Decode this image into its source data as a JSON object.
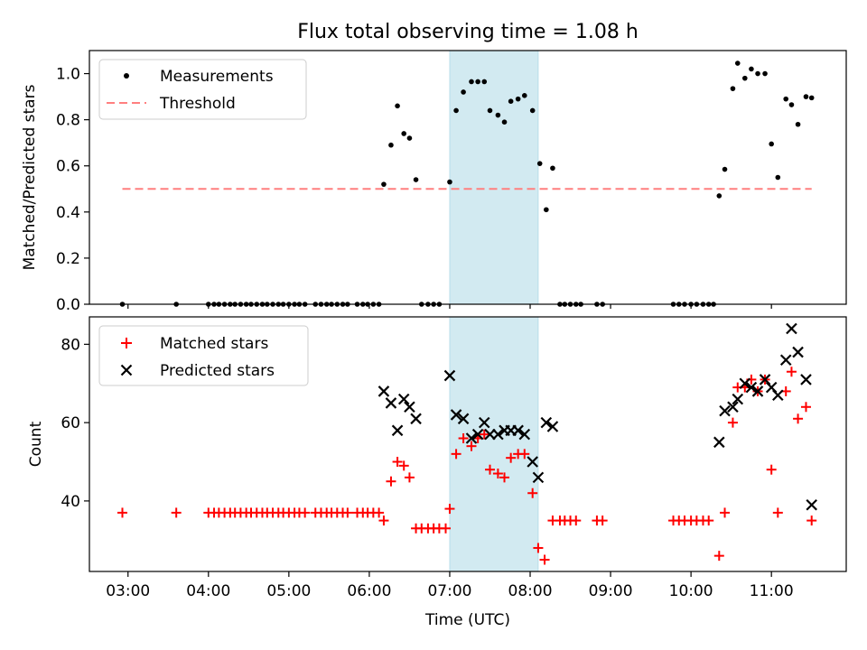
{
  "figure": {
    "title": "Flux total observing time = 1.08 h"
  },
  "chart_data": [
    {
      "type": "scatter",
      "ylabel": "Matched/Predicted stars",
      "ylim": [
        0,
        1.1
      ],
      "yticks": [
        "0.0",
        "0.2",
        "0.4",
        "0.6",
        "0.8",
        "1.0"
      ],
      "xlim_hours": [
        2.52,
        11.93
      ],
      "shaded_region_hours": [
        7.0,
        8.1
      ],
      "shade_color": "#add8e6",
      "legend": {
        "position": "upper-left",
        "items": [
          {
            "label": "Measurements",
            "color": "#000000",
            "marker": "dot"
          },
          {
            "label": "Threshold",
            "color": "#ff7f7f",
            "marker": "dashed-line"
          }
        ]
      },
      "threshold": {
        "value": 0.5,
        "x_range_hours": [
          2.93,
          11.5
        ],
        "color": "#ff7f7f"
      },
      "series": [
        {
          "name": "Measurements",
          "color": "#000000",
          "points": [
            [
              2.93,
              0
            ],
            [
              3.6,
              0
            ],
            [
              4.0,
              0
            ],
            [
              4.07,
              0
            ],
            [
              4.13,
              0
            ],
            [
              4.2,
              0
            ],
            [
              4.27,
              0
            ],
            [
              4.33,
              0
            ],
            [
              4.4,
              0
            ],
            [
              4.47,
              0
            ],
            [
              4.53,
              0
            ],
            [
              4.6,
              0
            ],
            [
              4.67,
              0
            ],
            [
              4.73,
              0
            ],
            [
              4.8,
              0
            ],
            [
              4.87,
              0
            ],
            [
              4.93,
              0
            ],
            [
              5.0,
              0
            ],
            [
              5.07,
              0
            ],
            [
              5.13,
              0
            ],
            [
              5.2,
              0
            ],
            [
              5.33,
              0
            ],
            [
              5.4,
              0
            ],
            [
              5.47,
              0
            ],
            [
              5.53,
              0
            ],
            [
              5.6,
              0
            ],
            [
              5.67,
              0
            ],
            [
              5.73,
              0
            ],
            [
              5.85,
              0
            ],
            [
              5.92,
              0
            ],
            [
              5.98,
              0
            ],
            [
              6.05,
              0
            ],
            [
              6.12,
              0
            ],
            [
              6.18,
              0.52
            ],
            [
              6.27,
              0.69
            ],
            [
              6.35,
              0.86
            ],
            [
              6.43,
              0.74
            ],
            [
              6.5,
              0.72
            ],
            [
              6.58,
              0.54
            ],
            [
              6.65,
              0
            ],
            [
              6.73,
              0
            ],
            [
              6.8,
              0
            ],
            [
              6.87,
              0
            ],
            [
              7.0,
              0.53
            ],
            [
              7.08,
              0.84
            ],
            [
              7.17,
              0.92
            ],
            [
              7.27,
              0.965
            ],
            [
              7.35,
              0.965
            ],
            [
              7.43,
              0.965
            ],
            [
              7.5,
              0.84
            ],
            [
              7.6,
              0.82
            ],
            [
              7.68,
              0.79
            ],
            [
              7.76,
              0.88
            ],
            [
              7.85,
              0.89
            ],
            [
              7.93,
              0.905
            ],
            [
              8.03,
              0.84
            ],
            [
              8.12,
              0.61
            ],
            [
              8.2,
              0.41
            ],
            [
              8.28,
              0.59
            ],
            [
              8.37,
              0
            ],
            [
              8.43,
              0
            ],
            [
              8.5,
              0
            ],
            [
              8.57,
              0
            ],
            [
              8.63,
              0
            ],
            [
              8.83,
              0
            ],
            [
              8.9,
              0
            ],
            [
              9.78,
              0
            ],
            [
              9.85,
              0
            ],
            [
              9.92,
              0
            ],
            [
              10.0,
              0
            ],
            [
              10.07,
              0
            ],
            [
              10.15,
              0
            ],
            [
              10.22,
              0
            ],
            [
              10.28,
              0
            ],
            [
              10.35,
              0.47
            ],
            [
              10.42,
              0.585
            ],
            [
              10.52,
              0.935
            ],
            [
              10.58,
              1.045
            ],
            [
              10.67,
              0.98
            ],
            [
              10.75,
              1.02
            ],
            [
              10.83,
              1.0
            ],
            [
              10.92,
              1.0
            ],
            [
              11.0,
              0.695
            ],
            [
              11.08,
              0.55
            ],
            [
              11.18,
              0.89
            ],
            [
              11.25,
              0.865
            ],
            [
              11.33,
              0.78
            ],
            [
              11.43,
              0.9
            ],
            [
              11.5,
              0.895
            ]
          ]
        }
      ]
    },
    {
      "type": "scatter",
      "xlabel": "Time (UTC)",
      "ylabel": "Count",
      "ylim": [
        22,
        87
      ],
      "yticks": [
        "40",
        "60",
        "80"
      ],
      "xticks": [
        "03:00",
        "04:00",
        "05:00",
        "06:00",
        "07:00",
        "08:00",
        "09:00",
        "10:00",
        "11:00"
      ],
      "xlim_hours": [
        2.52,
        11.93
      ],
      "shaded_region_hours": [
        7.0,
        8.1
      ],
      "legend": {
        "position": "upper-left",
        "items": [
          {
            "label": "Matched stars",
            "color": "#ff0000",
            "marker": "plus"
          },
          {
            "label": "Predicted stars",
            "color": "#000000",
            "marker": "x"
          }
        ]
      },
      "series": [
        {
          "name": "Matched stars",
          "color": "#ff0000",
          "marker": "plus",
          "points": [
            [
              2.93,
              37
            ],
            [
              3.6,
              37
            ],
            [
              4.0,
              37
            ],
            [
              4.07,
              37
            ],
            [
              4.13,
              37
            ],
            [
              4.2,
              37
            ],
            [
              4.27,
              37
            ],
            [
              4.33,
              37
            ],
            [
              4.4,
              37
            ],
            [
              4.47,
              37
            ],
            [
              4.53,
              37
            ],
            [
              4.6,
              37
            ],
            [
              4.67,
              37
            ],
            [
              4.73,
              37
            ],
            [
              4.8,
              37
            ],
            [
              4.87,
              37
            ],
            [
              4.93,
              37
            ],
            [
              5.0,
              37
            ],
            [
              5.07,
              37
            ],
            [
              5.13,
              37
            ],
            [
              5.2,
              37
            ],
            [
              5.33,
              37
            ],
            [
              5.4,
              37
            ],
            [
              5.47,
              37
            ],
            [
              5.53,
              37
            ],
            [
              5.6,
              37
            ],
            [
              5.67,
              37
            ],
            [
              5.73,
              37
            ],
            [
              5.85,
              37
            ],
            [
              5.92,
              37
            ],
            [
              5.98,
              37
            ],
            [
              6.05,
              37
            ],
            [
              6.12,
              37
            ],
            [
              6.18,
              35
            ],
            [
              6.27,
              45
            ],
            [
              6.35,
              50
            ],
            [
              6.43,
              49
            ],
            [
              6.5,
              46
            ],
            [
              6.58,
              33
            ],
            [
              6.65,
              33
            ],
            [
              6.73,
              33
            ],
            [
              6.8,
              33
            ],
            [
              6.87,
              33
            ],
            [
              6.95,
              33
            ],
            [
              7.0,
              38
            ],
            [
              7.08,
              52
            ],
            [
              7.17,
              56
            ],
            [
              7.27,
              54
            ],
            [
              7.35,
              56
            ],
            [
              7.43,
              57
            ],
            [
              7.5,
              48
            ],
            [
              7.6,
              47
            ],
            [
              7.68,
              46
            ],
            [
              7.76,
              51
            ],
            [
              7.85,
              52
            ],
            [
              7.93,
              52
            ],
            [
              8.03,
              42
            ],
            [
              8.1,
              28
            ],
            [
              8.18,
              25
            ],
            [
              8.28,
              35
            ],
            [
              8.37,
              35
            ],
            [
              8.43,
              35
            ],
            [
              8.5,
              35
            ],
            [
              8.57,
              35
            ],
            [
              8.83,
              35
            ],
            [
              8.9,
              35
            ],
            [
              9.78,
              35
            ],
            [
              9.85,
              35
            ],
            [
              9.92,
              35
            ],
            [
              10.0,
              35
            ],
            [
              10.07,
              35
            ],
            [
              10.15,
              35
            ],
            [
              10.22,
              35
            ],
            [
              10.35,
              26
            ],
            [
              10.42,
              37
            ],
            [
              10.52,
              60
            ],
            [
              10.58,
              69
            ],
            [
              10.67,
              69
            ],
            [
              10.75,
              71
            ],
            [
              10.83,
              68
            ],
            [
              10.92,
              71
            ],
            [
              11.0,
              48
            ],
            [
              11.08,
              37
            ],
            [
              11.18,
              68
            ],
            [
              11.25,
              73
            ],
            [
              11.33,
              61
            ],
            [
              11.43,
              64
            ],
            [
              11.5,
              35
            ]
          ]
        },
        {
          "name": "Predicted stars",
          "color": "#000000",
          "marker": "x",
          "points": [
            [
              6.18,
              68
            ],
            [
              6.27,
              65
            ],
            [
              6.35,
              58
            ],
            [
              6.43,
              66
            ],
            [
              6.5,
              64
            ],
            [
              6.58,
              61
            ],
            [
              7.0,
              72
            ],
            [
              7.08,
              62
            ],
            [
              7.17,
              61
            ],
            [
              7.27,
              56
            ],
            [
              7.35,
              57
            ],
            [
              7.43,
              60
            ],
            [
              7.5,
              57
            ],
            [
              7.6,
              57
            ],
            [
              7.68,
              58
            ],
            [
              7.76,
              58
            ],
            [
              7.85,
              58
            ],
            [
              7.93,
              57
            ],
            [
              8.03,
              50
            ],
            [
              8.1,
              46
            ],
            [
              8.2,
              60
            ],
            [
              8.28,
              59
            ],
            [
              10.35,
              55
            ],
            [
              10.42,
              63
            ],
            [
              10.52,
              64
            ],
            [
              10.58,
              66
            ],
            [
              10.67,
              70
            ],
            [
              10.75,
              69
            ],
            [
              10.83,
              68
            ],
            [
              10.92,
              71
            ],
            [
              11.0,
              69
            ],
            [
              11.08,
              67
            ],
            [
              11.18,
              76
            ],
            [
              11.25,
              84
            ],
            [
              11.33,
              78
            ],
            [
              11.43,
              71
            ],
            [
              11.5,
              39
            ]
          ]
        }
      ]
    }
  ]
}
